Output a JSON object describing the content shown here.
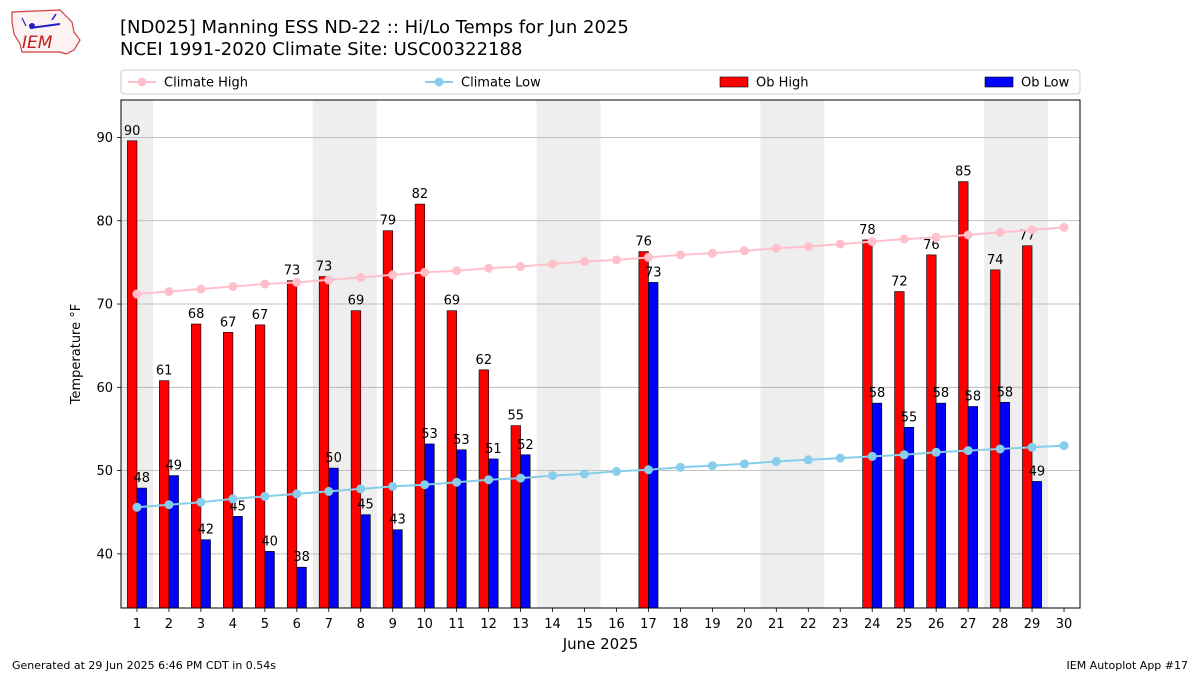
{
  "header": {
    "title_line1": "[ND025] Manning ESS ND-22 :: Hi/Lo Temps for Jun 2025",
    "title_line2": "NCEI 1991-2020 Climate Site: USC00322188",
    "logo_text": "IEM"
  },
  "footer": {
    "left": "Generated at 29 Jun 2025 6:46 PM CDT in 0.54s",
    "right": "IEM Autoplot App #17"
  },
  "colors": {
    "ob_high": "#ff0000",
    "ob_low": "#0000ff",
    "climate_high": "#ffc0cb",
    "climate_low": "#87ceeb",
    "weekend_band": "#eeeeee",
    "grid": "#b0b0b0"
  },
  "chart_data": {
    "type": "bar",
    "xlabel": "June 2025",
    "ylabel": "Temperature °F",
    "ylim": [
      33.5,
      94.5
    ],
    "yticks": [
      40,
      50,
      60,
      70,
      80,
      90
    ],
    "grid": "horizontal",
    "legend_position": "top",
    "categories": [
      "1",
      "2",
      "3",
      "4",
      "5",
      "6",
      "7",
      "8",
      "9",
      "10",
      "11",
      "12",
      "13",
      "14",
      "15",
      "16",
      "17",
      "18",
      "19",
      "20",
      "21",
      "22",
      "23",
      "24",
      "25",
      "26",
      "27",
      "28",
      "29",
      "30"
    ],
    "weekend_bands": [
      [
        1,
        1
      ],
      [
        7,
        8
      ],
      [
        14,
        15
      ],
      [
        21,
        22
      ],
      [
        28,
        29
      ]
    ],
    "series": [
      {
        "name": "Ob High",
        "kind": "bar",
        "values": [
          89.6,
          60.8,
          67.6,
          66.6,
          67.5,
          72.8,
          73.3,
          69.2,
          78.8,
          82.0,
          69.2,
          62.1,
          55.4,
          null,
          null,
          null,
          76.3,
          null,
          null,
          null,
          null,
          null,
          null,
          77.7,
          71.5,
          75.9,
          84.7,
          74.1,
          77.0,
          null
        ],
        "labels": [
          "90",
          "61",
          "68",
          "67",
          "67",
          "73",
          "73",
          "69",
          "79",
          "82",
          "69",
          "62",
          "55",
          "",
          "",
          "",
          "76",
          "",
          "",
          "",
          "",
          "",
          "",
          "78",
          "72",
          "76",
          "85",
          "74",
          "77",
          ""
        ]
      },
      {
        "name": "Ob Low",
        "kind": "bar",
        "values": [
          47.9,
          49.4,
          41.7,
          44.5,
          40.3,
          38.4,
          50.3,
          44.7,
          42.9,
          53.2,
          52.5,
          51.4,
          51.9,
          null,
          null,
          null,
          72.6,
          null,
          null,
          null,
          null,
          null,
          null,
          58.1,
          55.2,
          58.1,
          57.7,
          58.2,
          48.7,
          null
        ],
        "labels": [
          "48",
          "49",
          "42",
          "45",
          "40",
          "38",
          "50",
          "45",
          "43",
          "53",
          "53",
          "51",
          "52",
          "",
          "",
          "",
          "73",
          "",
          "",
          "",
          "",
          "",
          "",
          "58",
          "55",
          "58",
          "58",
          "58",
          "49",
          ""
        ]
      },
      {
        "name": "Climate High",
        "kind": "line",
        "values": [
          71.2,
          71.5,
          71.8,
          72.1,
          72.4,
          72.6,
          72.9,
          73.2,
          73.5,
          73.8,
          74.0,
          74.3,
          74.5,
          74.8,
          75.1,
          75.3,
          75.6,
          75.9,
          76.1,
          76.4,
          76.7,
          76.9,
          77.2,
          77.5,
          77.8,
          78.0,
          78.3,
          78.6,
          78.9,
          79.2
        ]
      },
      {
        "name": "Climate Low",
        "kind": "line",
        "values": [
          45.6,
          45.9,
          46.2,
          46.6,
          46.9,
          47.2,
          47.5,
          47.8,
          48.1,
          48.3,
          48.6,
          48.9,
          49.1,
          49.4,
          49.6,
          49.9,
          50.1,
          50.4,
          50.6,
          50.8,
          51.1,
          51.3,
          51.5,
          51.7,
          51.9,
          52.2,
          52.4,
          52.6,
          52.8,
          53.0
        ]
      }
    ]
  }
}
